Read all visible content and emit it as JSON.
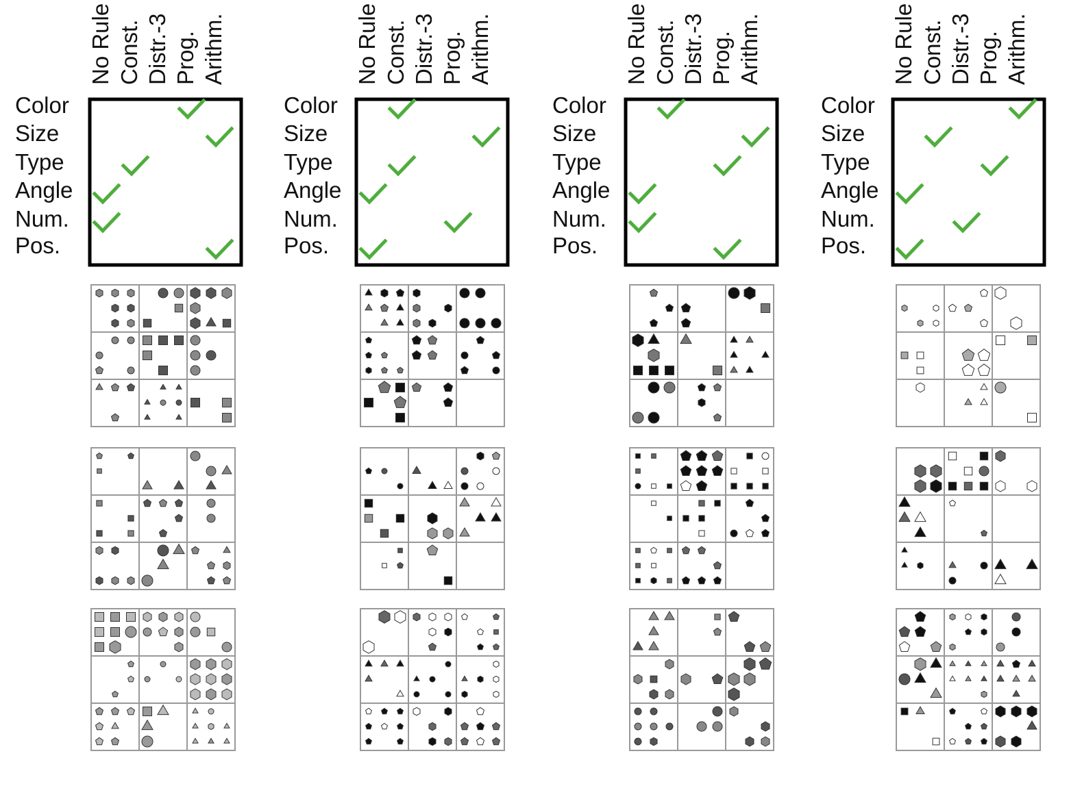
{
  "rule_columns": [
    "No Rule",
    "Const.",
    "Distr.-3",
    "Prog.",
    "Arithm."
  ],
  "attribute_rows": [
    "Color",
    "Size",
    "Type",
    "Angle",
    "Num.",
    "Pos."
  ],
  "check_color": "#4caf3a",
  "panels": [
    {
      "name": "panel-1",
      "checks": {
        "Color": "Prog.",
        "Size": "Arithm.",
        "Type": "Const.",
        "Angle": "No Rule",
        "Num.": "No Rule",
        "Pos.": "Arithm."
      },
      "examples": [
        {
          "density": "dense",
          "shape_tone": "gray-dark",
          "seed": 11
        },
        {
          "density": "sparse",
          "shape_tone": "gray-dark",
          "seed": 12
        },
        {
          "density": "dense",
          "shape_tone": "gray-light",
          "seed": 13
        }
      ]
    },
    {
      "name": "panel-2",
      "checks": {
        "Color": "Const.",
        "Size": "Arithm.",
        "Type": "Const.",
        "Angle": "No Rule",
        "Num.": "Prog.",
        "Pos.": "No Rule"
      },
      "examples": [
        {
          "density": "dense",
          "shape_tone": "black",
          "seed": 21
        },
        {
          "density": "sparse",
          "shape_tone": "mixed",
          "seed": 22
        },
        {
          "density": "dense",
          "shape_tone": "black-white",
          "seed": 23
        }
      ]
    },
    {
      "name": "panel-3",
      "checks": {
        "Color": "Const.",
        "Size": "Arithm.",
        "Type": "Prog.",
        "Angle": "No Rule",
        "Num.": "No Rule",
        "Pos.": "Prog."
      },
      "examples": [
        {
          "density": "sparse",
          "shape_tone": "black",
          "seed": 31
        },
        {
          "density": "dense",
          "shape_tone": "black-white",
          "seed": 32
        },
        {
          "density": "sparse",
          "shape_tone": "gray-dark",
          "seed": 33
        }
      ]
    },
    {
      "name": "panel-4",
      "checks": {
        "Color": "Arithm.",
        "Size": "Const.",
        "Type": "Prog.",
        "Angle": "No Rule",
        "Num.": "Distr.-3",
        "Pos.": "No Rule"
      },
      "examples": [
        {
          "density": "sparse",
          "shape_tone": "white-outline",
          "seed": 41
        },
        {
          "density": "sparse",
          "shape_tone": "black-white",
          "seed": 42
        },
        {
          "density": "dense",
          "shape_tone": "mixed",
          "seed": 43
        }
      ]
    }
  ]
}
